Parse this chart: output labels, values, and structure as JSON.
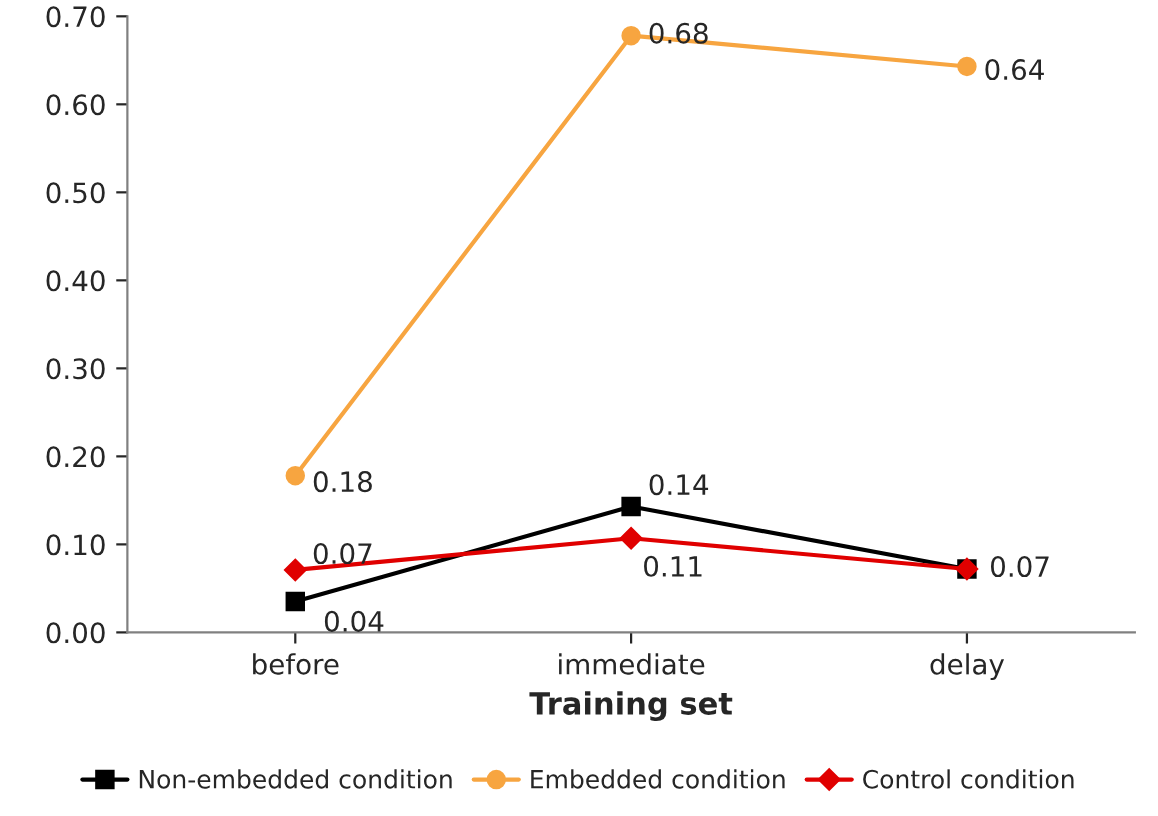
{
  "chart_data": {
    "type": "line",
    "xlabel": "Training set",
    "categories": [
      "before",
      "immediate",
      "delay"
    ],
    "ylim": [
      0,
      0.7
    ],
    "yticks": [
      {
        "value": 0,
        "label": "0.00"
      },
      {
        "value": 0.1,
        "label": "0.10"
      },
      {
        "value": 0.2,
        "label": "0.20"
      },
      {
        "value": 0.3,
        "label": "0.30"
      },
      {
        "value": 0.4,
        "label": "0.40"
      },
      {
        "value": 0.5,
        "label": "0.50"
      },
      {
        "value": 0.6,
        "label": "0.60"
      },
      {
        "value": 0.7,
        "label": "0.70"
      }
    ],
    "series": [
      {
        "name": "Non-embedded condition",
        "color": "#000000",
        "marker": "square",
        "values": [
          0.035,
          0.143,
          0.072
        ],
        "value_labels": [
          "0.04",
          "0.14",
          "0.07"
        ]
      },
      {
        "name": "Embedded condition",
        "color": "#f7a540",
        "marker": "circle",
        "values": [
          0.178,
          0.678,
          0.643
        ],
        "value_labels": [
          "0.18",
          "0.68",
          "0.64"
        ]
      },
      {
        "name": "Control condition",
        "color": "#e00000",
        "marker": "diamond",
        "values": [
          0.071,
          0.107,
          0.072
        ],
        "value_labels": [
          "0.07",
          "0.11",
          null
        ]
      }
    ],
    "legend": "bottom",
    "grid": false,
    "line_style": "solid"
  }
}
